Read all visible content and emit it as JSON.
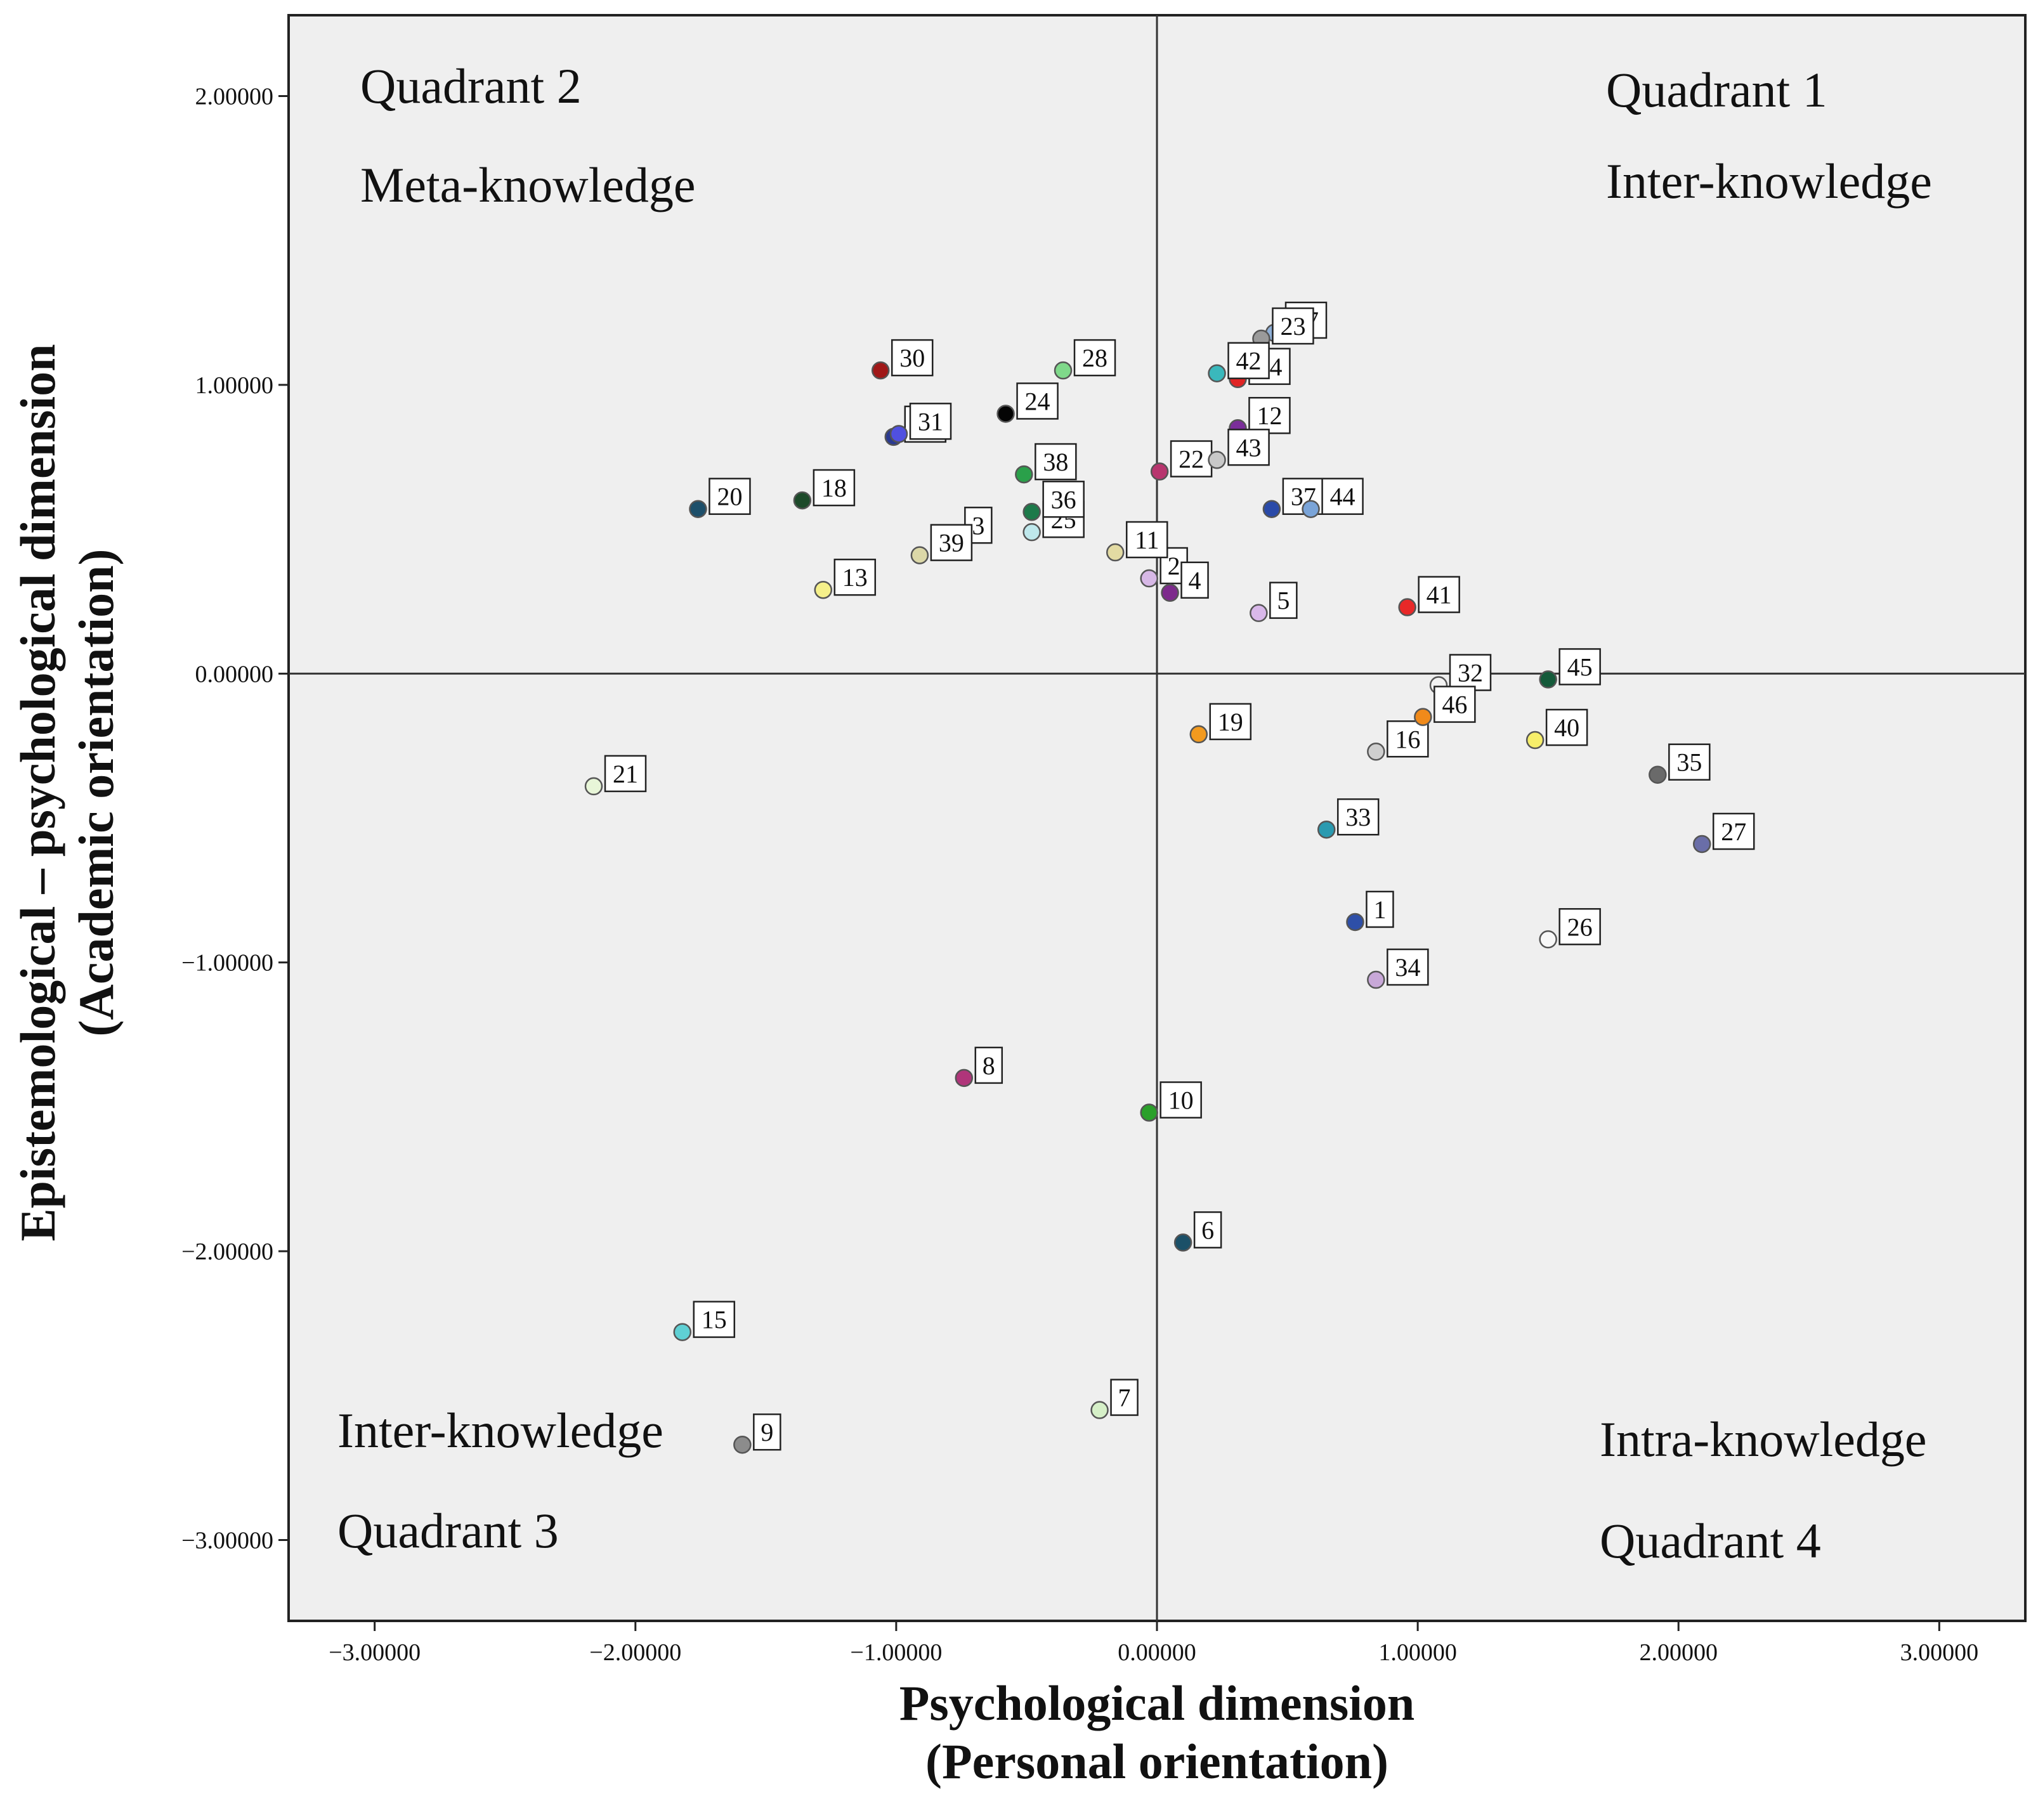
{
  "chart_data": {
    "type": "scatter",
    "xlabel": [
      "Psychological dimension",
      "(Personal orientation)"
    ],
    "ylabel": [
      "Epistemological – psychological dimension",
      "(Academic orientation)"
    ],
    "xlim": [
      -3.33,
      3.33
    ],
    "ylim": [
      -3.28,
      2.28
    ],
    "x_ticks": [
      -3.0,
      -2.0,
      -1.0,
      0.0,
      1.0,
      2.0,
      3.0
    ],
    "x_tick_labels": [
      "−3.00000",
      "−2.00000",
      "−1.00000",
      "0.00000",
      "1.00000",
      "2.00000",
      "3.00000"
    ],
    "y_ticks": [
      2.0,
      1.0,
      0.0,
      -1.0,
      -2.0,
      -3.0
    ],
    "y_tick_labels": [
      "2.00000",
      "1.00000",
      "0.00000",
      "−1.00000",
      "−2.00000",
      "−3.00000"
    ],
    "reference_lines": {
      "x": 0.0,
      "y": 0.0
    },
    "grid": false,
    "plot_background": "#efefef",
    "quadrant_labels": [
      {
        "id": "q2",
        "lines": [
          "Quadrant 2",
          "Meta-knowledge"
        ],
        "position": "top-left"
      },
      {
        "id": "q1",
        "lines": [
          "Quadrant 1",
          "Inter-knowledge"
        ],
        "position": "top-right"
      },
      {
        "id": "q3",
        "lines": [
          "Inter-knowledge",
          "Quadrant 3"
        ],
        "position": "bottom-left"
      },
      {
        "id": "q4",
        "lines": [
          "Intra-knowledge",
          "Quadrant 4"
        ],
        "position": "bottom-right"
      }
    ],
    "points": [
      {
        "label": "1",
        "x": 0.76,
        "y": -0.86,
        "color": "#2e4fa8"
      },
      {
        "label": "2",
        "x": -0.03,
        "y": 0.33,
        "color": "#d7b8e6"
      },
      {
        "label": "3",
        "x": -0.78,
        "y": 0.47,
        "color": "#a9cfee"
      },
      {
        "label": "4",
        "x": 0.05,
        "y": 0.28,
        "color": "#7d2a8c"
      },
      {
        "label": "5",
        "x": 0.39,
        "y": 0.21,
        "color": "#d9b8ea"
      },
      {
        "label": "6",
        "x": 0.1,
        "y": -1.97,
        "color": "#1b5068"
      },
      {
        "label": "7",
        "x": -0.22,
        "y": -2.55,
        "color": "#d6f0c8"
      },
      {
        "label": "8",
        "x": -0.74,
        "y": -1.4,
        "color": "#b0357a"
      },
      {
        "label": "9",
        "x": -1.59,
        "y": -2.67,
        "color": "#8c8c8c"
      },
      {
        "label": "10",
        "x": -0.03,
        "y": -1.52,
        "color": "#2aa02a"
      },
      {
        "label": "11",
        "x": -0.16,
        "y": 0.42,
        "color": "#e3dba3"
      },
      {
        "label": "12",
        "x": 0.31,
        "y": 0.85,
        "color": "#7b2e9a"
      },
      {
        "label": "13",
        "x": -1.28,
        "y": 0.29,
        "color": "#f5f08a"
      },
      {
        "label": "14",
        "x": 0.31,
        "y": 1.02,
        "color": "#e02424"
      },
      {
        "label": "15",
        "x": -1.82,
        "y": -2.28,
        "color": "#5fd0d4"
      },
      {
        "label": "16",
        "x": 0.84,
        "y": -0.27,
        "color": "#cfcfcf"
      },
      {
        "label": "17",
        "x": 0.45,
        "y": 1.18,
        "color": "#8fb0d8"
      },
      {
        "label": "18",
        "x": -1.36,
        "y": 0.6,
        "color": "#1d4a2a"
      },
      {
        "label": "19",
        "x": 0.16,
        "y": -0.21,
        "color": "#f29a1f"
      },
      {
        "label": "20",
        "x": -1.76,
        "y": 0.57,
        "color": "#1d4f6a"
      },
      {
        "label": "21",
        "x": -2.16,
        "y": -0.39,
        "color": "#e8f6d8"
      },
      {
        "label": "22",
        "x": 0.01,
        "y": 0.7,
        "color": "#b8356e"
      },
      {
        "label": "23",
        "x": 0.4,
        "y": 1.16,
        "color": "#9a9a9a"
      },
      {
        "label": "24",
        "x": -0.58,
        "y": 0.9,
        "color": "#050505"
      },
      {
        "label": "25",
        "x": -0.48,
        "y": 0.49,
        "color": "#bfe8ec"
      },
      {
        "label": "26",
        "x": 1.5,
        "y": -0.92,
        "color": "#f8f8f8"
      },
      {
        "label": "27",
        "x": 2.09,
        "y": -0.59,
        "color": "#6a6ea8"
      },
      {
        "label": "28",
        "x": -0.36,
        "y": 1.05,
        "color": "#7fd98a"
      },
      {
        "label": "29",
        "x": -1.01,
        "y": 0.82,
        "color": "#2a3a90"
      },
      {
        "label": "30",
        "x": -1.06,
        "y": 1.05,
        "color": "#a01818"
      },
      {
        "label": "31",
        "x": -0.99,
        "y": 0.83,
        "color": "#5050e0"
      },
      {
        "label": "32",
        "x": 1.08,
        "y": -0.04,
        "color": "#f2f2f2"
      },
      {
        "label": "33",
        "x": 0.65,
        "y": -0.54,
        "color": "#2a9ab0"
      },
      {
        "label": "34",
        "x": 0.84,
        "y": -1.06,
        "color": "#c8a8d8"
      },
      {
        "label": "35",
        "x": 1.92,
        "y": -0.35,
        "color": "#6a6a6a"
      },
      {
        "label": "36",
        "x": -0.48,
        "y": 0.56,
        "color": "#1d7a4a"
      },
      {
        "label": "37",
        "x": 0.44,
        "y": 0.57,
        "color": "#2a4aa8"
      },
      {
        "label": "38",
        "x": -0.51,
        "y": 0.69,
        "color": "#2aa04a"
      },
      {
        "label": "39",
        "x": -0.91,
        "y": 0.41,
        "color": "#dcd8a8"
      },
      {
        "label": "40",
        "x": 1.45,
        "y": -0.23,
        "color": "#f6ee6a"
      },
      {
        "label": "41",
        "x": 0.96,
        "y": 0.23,
        "color": "#e82828"
      },
      {
        "label": "42",
        "x": 0.23,
        "y": 1.04,
        "color": "#3ab8bc"
      },
      {
        "label": "43",
        "x": 0.23,
        "y": 0.74,
        "color": "#c8c8c8"
      },
      {
        "label": "44",
        "x": 0.59,
        "y": 0.57,
        "color": "#7aa4d8"
      },
      {
        "label": "45",
        "x": 1.5,
        "y": -0.02,
        "color": "#145a3a"
      },
      {
        "label": "46",
        "x": 1.02,
        "y": -0.15,
        "color": "#f08a1a"
      }
    ]
  }
}
